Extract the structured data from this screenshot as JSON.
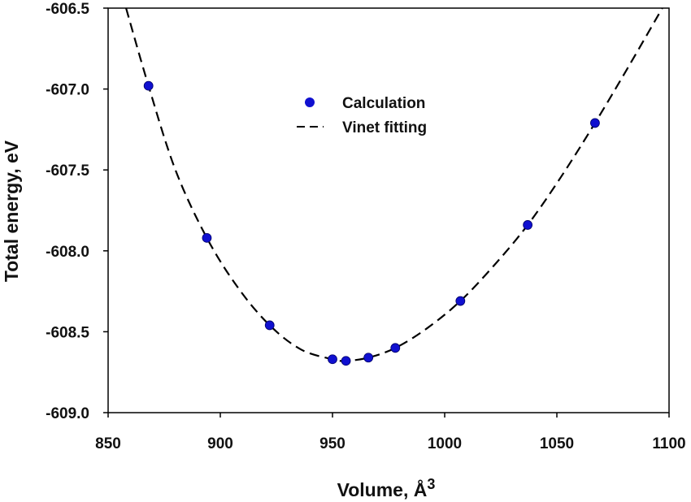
{
  "chart_data": {
    "type": "scatter",
    "title": "",
    "xlabel": "Volume, Å",
    "xlabel_superscript": "3",
    "ylabel": "Total energy, eV",
    "xlim": [
      850,
      1100
    ],
    "ylim": [
      -609.0,
      -606.5
    ],
    "grid": false,
    "legend_position": "top-center",
    "x_ticks": [
      850,
      900,
      950,
      1000,
      1050,
      1100
    ],
    "x_tick_labels": [
      "850",
      "900",
      "950",
      "1000",
      "1050",
      "1100"
    ],
    "y_ticks": [
      -606.5,
      -607.0,
      -607.5,
      -608.0,
      -608.5,
      -609.0
    ],
    "y_tick_labels": [
      "-606.5",
      "-607.0",
      "-607.5",
      "-608.0",
      "-608.5",
      "-609.0"
    ],
    "series": [
      {
        "name": "Calculation",
        "kind": "points",
        "color": "#1010d0",
        "x": [
          868,
          894,
          922,
          950,
          956,
          966,
          978,
          1007,
          1037,
          1067
        ],
        "y": [
          -606.98,
          -607.92,
          -608.46,
          -608.67,
          -608.68,
          -608.66,
          -608.6,
          -608.31,
          -607.84,
          -607.21
        ]
      },
      {
        "name": "Vinet fitting",
        "kind": "dashed-line",
        "color": "#000000",
        "x": [
          858,
          868,
          880,
          894,
          908,
          922,
          936,
          950,
          956,
          966,
          978,
          992,
          1007,
          1022,
          1037,
          1052,
          1067,
          1082,
          1097
        ],
        "y": [
          -606.5,
          -606.98,
          -607.5,
          -607.92,
          -608.23,
          -608.46,
          -608.61,
          -608.67,
          -608.68,
          -608.66,
          -608.6,
          -608.48,
          -608.31,
          -608.09,
          -607.84,
          -607.54,
          -607.21,
          -606.86,
          -606.5
        ]
      }
    ]
  }
}
